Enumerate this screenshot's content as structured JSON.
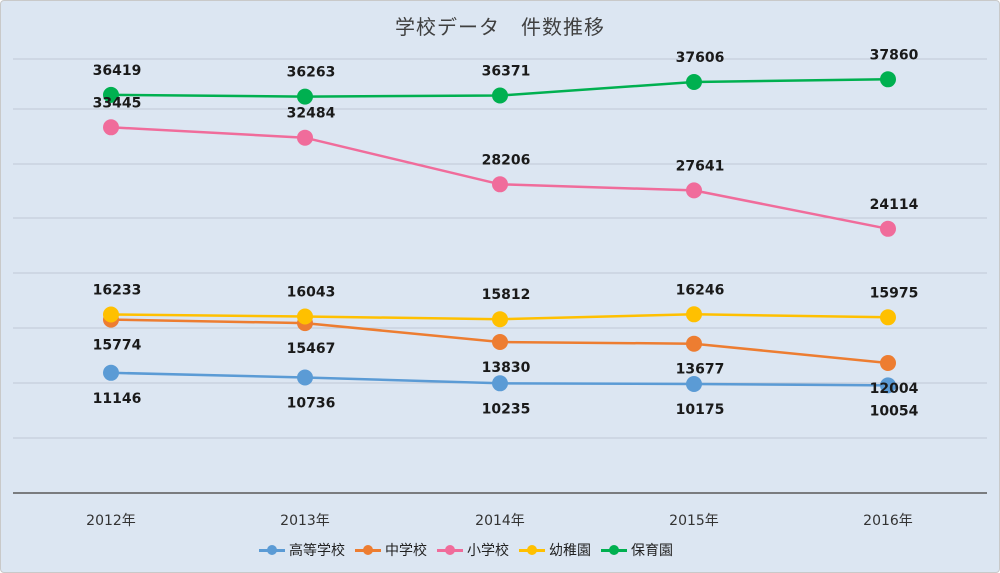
{
  "chart_data": {
    "type": "line",
    "title": "学校データ　件数推移",
    "categories": [
      "2012年",
      "2013年",
      "2014年",
      "2015年",
      "2016年"
    ],
    "xlabel": "",
    "ylabel": "",
    "grid": true,
    "legend_position": "bottom",
    "series": [
      {
        "name": "高等学校",
        "color": "#5b9bd5",
        "values": [
          11146,
          10736,
          10235,
          10175,
          10054
        ],
        "label_side": "below"
      },
      {
        "name": "中学校",
        "color": "#ed7d31",
        "values": [
          15774,
          15467,
          13830,
          13677,
          12004
        ],
        "label_side": "below"
      },
      {
        "name": "小学校",
        "color": "#f06c9b",
        "values": [
          33445,
          32484,
          28206,
          27641,
          24114
        ],
        "label_side": "above"
      },
      {
        "name": "幼稚園",
        "color": "#ffc000",
        "values": [
          16233,
          16043,
          15812,
          16246,
          15975
        ],
        "label_side": "above"
      },
      {
        "name": "保育園",
        "color": "#00b050",
        "values": [
          36419,
          36263,
          36371,
          37606,
          37860
        ],
        "label_side": "above"
      }
    ]
  }
}
